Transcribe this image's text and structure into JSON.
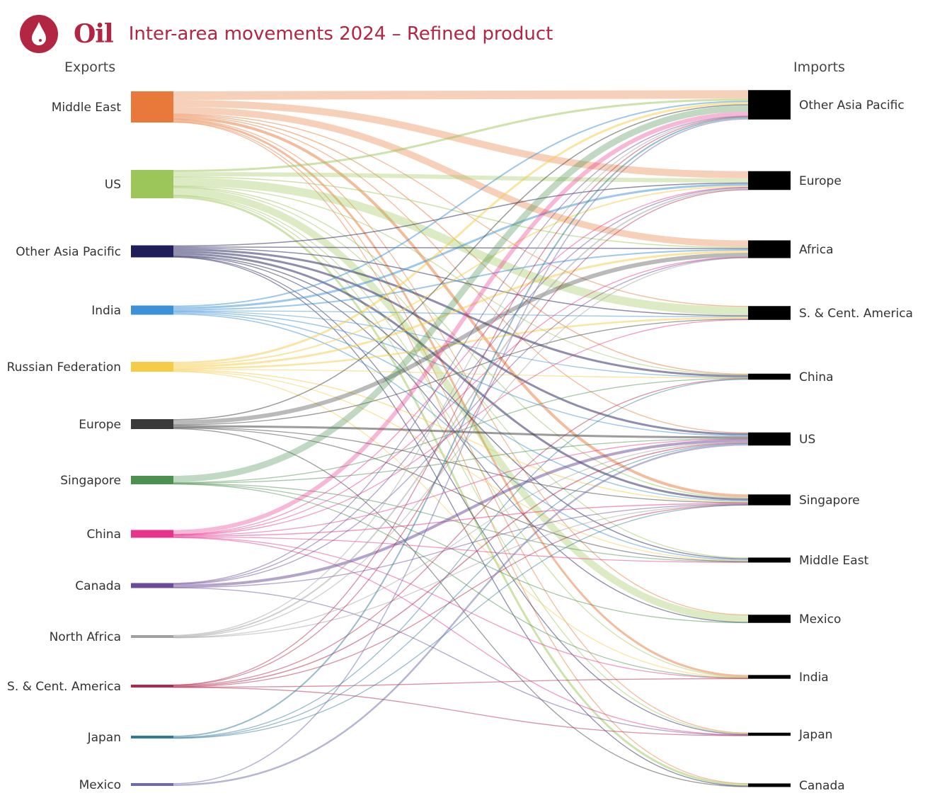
{
  "header": {
    "logo_icon": "oil-drop-icon",
    "brand": "Oil",
    "title": "Inter-area movements 2024 – Refined product"
  },
  "chart_data": {
    "type": "sankey",
    "title": "Inter-area movements 2024 – Refined product",
    "left_heading": "Exports",
    "right_heading": "Imports",
    "sources": [
      {
        "name": "Middle East",
        "color": "#e8793a"
      },
      {
        "name": "US",
        "color": "#9dc65a"
      },
      {
        "name": "Other Asia Pacific",
        "color": "#1f1d5a"
      },
      {
        "name": "India",
        "color": "#3d91d6"
      },
      {
        "name": "Russian Federation",
        "color": "#f5cc47"
      },
      {
        "name": "Europe",
        "color": "#3a3a3a"
      },
      {
        "name": "Singapore",
        "color": "#4c9150"
      },
      {
        "name": "China",
        "color": "#e8338d"
      },
      {
        "name": "Canada",
        "color": "#6a4a9a"
      },
      {
        "name": "North Africa",
        "color": "#a0a0a0"
      },
      {
        "name": "S. & Cent. America",
        "color": "#b3254a"
      },
      {
        "name": "Japan",
        "color": "#2f7a98"
      },
      {
        "name": "Mexico",
        "color": "#6b6baa"
      }
    ],
    "targets": [
      {
        "name": "Other Asia Pacific",
        "color": "#000000"
      },
      {
        "name": "Europe",
        "color": "#000000"
      },
      {
        "name": "Africa",
        "color": "#000000"
      },
      {
        "name": "S. & Cent. America",
        "color": "#000000"
      },
      {
        "name": "China",
        "color": "#000000"
      },
      {
        "name": "US",
        "color": "#000000"
      },
      {
        "name": "Singapore",
        "color": "#000000"
      },
      {
        "name": "Middle East",
        "color": "#000000"
      },
      {
        "name": "Mexico",
        "color": "#000000"
      },
      {
        "name": "India",
        "color": "#000000"
      },
      {
        "name": "Japan",
        "color": "#000000"
      },
      {
        "name": "Canada",
        "color": "#000000"
      }
    ],
    "links": [
      [
        "Middle East",
        "Other Asia Pacific",
        1200
      ],
      [
        "Middle East",
        "Europe",
        1000
      ],
      [
        "Middle East",
        "Africa",
        950
      ],
      [
        "Middle East",
        "S. & Cent. America",
        100
      ],
      [
        "Middle East",
        "China",
        150
      ],
      [
        "Middle East",
        "US",
        100
      ],
      [
        "Middle East",
        "Singapore",
        400
      ],
      [
        "Middle East",
        "India",
        300
      ],
      [
        "Middle East",
        "Mexico",
        50
      ],
      [
        "Middle East",
        "Japan",
        100
      ],
      [
        "Middle East",
        "Canada",
        50
      ],
      [
        "US",
        "Other Asia Pacific",
        300
      ],
      [
        "US",
        "Europe",
        600
      ],
      [
        "US",
        "Africa",
        150
      ],
      [
        "US",
        "S. & Cent. America",
        1200
      ],
      [
        "US",
        "China",
        50
      ],
      [
        "US",
        "Singapore",
        150
      ],
      [
        "US",
        "Middle East",
        100
      ],
      [
        "US",
        "Mexico",
        1000
      ],
      [
        "US",
        "India",
        50
      ],
      [
        "US",
        "Japan",
        100
      ],
      [
        "US",
        "Canada",
        300
      ],
      [
        "Other Asia Pacific",
        "Europe",
        150
      ],
      [
        "Other Asia Pacific",
        "Africa",
        150
      ],
      [
        "Other Asia Pacific",
        "S. & Cent. America",
        150
      ],
      [
        "Other Asia Pacific",
        "China",
        300
      ],
      [
        "Other Asia Pacific",
        "US",
        300
      ],
      [
        "Other Asia Pacific",
        "Singapore",
        300
      ],
      [
        "Other Asia Pacific",
        "Middle East",
        150
      ],
      [
        "Other Asia Pacific",
        "Mexico",
        50
      ],
      [
        "Other Asia Pacific",
        "Japan",
        100
      ],
      [
        "Other Asia Pacific",
        "Canada",
        50
      ],
      [
        "India",
        "Other Asia Pacific",
        200
      ],
      [
        "India",
        "Europe",
        300
      ],
      [
        "India",
        "Africa",
        200
      ],
      [
        "India",
        "S. & Cent. America",
        100
      ],
      [
        "India",
        "China",
        50
      ],
      [
        "India",
        "US",
        150
      ],
      [
        "India",
        "Singapore",
        150
      ],
      [
        "India",
        "Middle East",
        150
      ],
      [
        "Russian Federation",
        "Other Asia Pacific",
        300
      ],
      [
        "Russian Federation",
        "Europe",
        200
      ],
      [
        "Russian Federation",
        "Africa",
        300
      ],
      [
        "Russian Federation",
        "S. & Cent. America",
        250
      ],
      [
        "Russian Federation",
        "China",
        50
      ],
      [
        "Russian Federation",
        "Singapore",
        150
      ],
      [
        "Russian Federation",
        "Middle East",
        100
      ],
      [
        "Russian Federation",
        "India",
        50
      ],
      [
        "Europe",
        "Other Asia Pacific",
        150
      ],
      [
        "Europe",
        "Africa",
        600
      ],
      [
        "Europe",
        "S. & Cent. America",
        100
      ],
      [
        "Europe",
        "US",
        300
      ],
      [
        "Europe",
        "Singapore",
        50
      ],
      [
        "Europe",
        "Middle East",
        100
      ],
      [
        "Europe",
        "Canada",
        100
      ],
      [
        "Singapore",
        "Other Asia Pacific",
        900
      ],
      [
        "Singapore",
        "China",
        100
      ],
      [
        "Singapore",
        "US",
        50
      ],
      [
        "Singapore",
        "Middle East",
        50
      ],
      [
        "Singapore",
        "Mexico",
        50
      ],
      [
        "Singapore",
        "India",
        50
      ],
      [
        "China",
        "Other Asia Pacific",
        600
      ],
      [
        "China",
        "Europe",
        50
      ],
      [
        "China",
        "Africa",
        50
      ],
      [
        "China",
        "S. & Cent. America",
        50
      ],
      [
        "China",
        "US",
        50
      ],
      [
        "China",
        "Singapore",
        150
      ],
      [
        "China",
        "Middle East",
        50
      ],
      [
        "China",
        "India",
        50
      ],
      [
        "China",
        "Japan",
        50
      ],
      [
        "Canada",
        "Other Asia Pacific",
        50
      ],
      [
        "Canada",
        "Europe",
        100
      ],
      [
        "Canada",
        "Africa",
        50
      ],
      [
        "Canada",
        "US",
        400
      ],
      [
        "Canada",
        "Singapore",
        50
      ],
      [
        "Canada",
        "Japan",
        50
      ],
      [
        "North Africa",
        "Other Asia Pacific",
        50
      ],
      [
        "North Africa",
        "Europe",
        200
      ],
      [
        "North Africa",
        "Africa",
        50
      ],
      [
        "North Africa",
        "US",
        50
      ],
      [
        "North Africa",
        "Singapore",
        50
      ],
      [
        "S. & Cent. America",
        "Other Asia Pacific",
        50
      ],
      [
        "S. & Cent. America",
        "Europe",
        50
      ],
      [
        "S. & Cent. America",
        "China",
        50
      ],
      [
        "S. & Cent. America",
        "US",
        150
      ],
      [
        "S. & Cent. America",
        "Singapore",
        30
      ],
      [
        "S. & Cent. America",
        "India",
        30
      ],
      [
        "S. & Cent. America",
        "Japan",
        40
      ],
      [
        "Japan",
        "Other Asia Pacific",
        200
      ],
      [
        "Japan",
        "China",
        100
      ],
      [
        "Japan",
        "US",
        50
      ],
      [
        "Japan",
        "Singapore",
        50
      ],
      [
        "Mexico",
        "Other Asia Pacific",
        150
      ],
      [
        "Mexico",
        "US",
        250
      ]
    ]
  }
}
